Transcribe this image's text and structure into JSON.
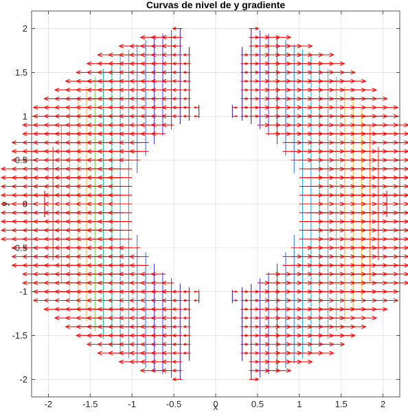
{
  "chart_data": {
    "type": "contour-quiver",
    "title": "Curvas de nivel de y gradiente",
    "xlabel": "x",
    "ylabel": "y",
    "xlim": [
      -2.2,
      2.2
    ],
    "ylim": [
      -2.2,
      2.2
    ],
    "xticks": [
      -2,
      -1.5,
      -1,
      -0.5,
      0,
      0.5,
      1,
      1.5,
      2
    ],
    "yticks": [
      -2,
      -1.5,
      -1,
      -0.5,
      0,
      0.5,
      1,
      1.5,
      2
    ],
    "xtick_labels": [
      "-2",
      "-1.5",
      "-1",
      "-0.5",
      "0",
      "0.5",
      "1",
      "1.5",
      "2"
    ],
    "ytick_labels": [
      "-2",
      "-1.5",
      "-1",
      "-0.5",
      "0",
      "0.5",
      "1",
      "1.5",
      "2"
    ],
    "grid": true,
    "domain": {
      "r_min": 1.0,
      "r_max": 2.05,
      "excluded_angle_center_deg": [
        90,
        270
      ],
      "excluded_half_width_deg": 10
    },
    "grid_step": 0.1,
    "contour": {
      "function": "f(x,y) = x^2",
      "levels": [
        0.04,
        0.1,
        0.18,
        0.28,
        0.4,
        0.54,
        0.7,
        0.88,
        1.08,
        1.3,
        1.54,
        1.8,
        2.08,
        2.38,
        2.7,
        3.04,
        3.4,
        3.78,
        4.18
      ],
      "colormap": [
        "#3e26a8",
        "#4743f8",
        "#2c7cf9",
        "#1caadf",
        "#24c0a2",
        "#7fcb55",
        "#e3b52f",
        "#fcc838",
        "#fa7d2a",
        "#e0302c",
        "#a31224"
      ]
    },
    "quiver": {
      "gradient": "grad f = (2x, 0)",
      "color": "#ff0000",
      "arrow_scale": 0.14,
      "sample_step": 0.1
    }
  }
}
